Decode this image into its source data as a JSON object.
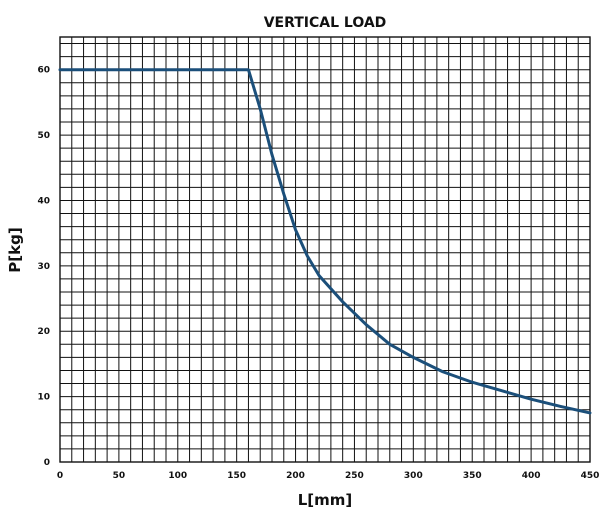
{
  "chart_data": {
    "type": "line",
    "title": "VERTICAL LOAD",
    "xlabel": "L[mm]",
    "ylabel": "P[kg]",
    "xlim": [
      0,
      450
    ],
    "ylim": [
      0,
      65
    ],
    "xticks": [
      0,
      50,
      100,
      150,
      200,
      250,
      300,
      350,
      400,
      450
    ],
    "yticks": [
      0,
      10,
      20,
      30,
      40,
      50,
      60
    ],
    "grid": true,
    "grid_minor_x": 10,
    "grid_minor_y": 2,
    "color": "#1b4f7a",
    "series": [
      {
        "x": [
          0,
          160,
          170,
          180,
          190,
          200,
          210,
          220,
          240,
          260,
          280,
          300,
          325,
          350,
          375,
          400,
          425,
          450
        ],
        "y": [
          60,
          60,
          54,
          47,
          41,
          35.5,
          31.5,
          28.5,
          24.5,
          21,
          18,
          16,
          13.8,
          12.2,
          10.9,
          9.6,
          8.5,
          7.5
        ]
      }
    ]
  }
}
